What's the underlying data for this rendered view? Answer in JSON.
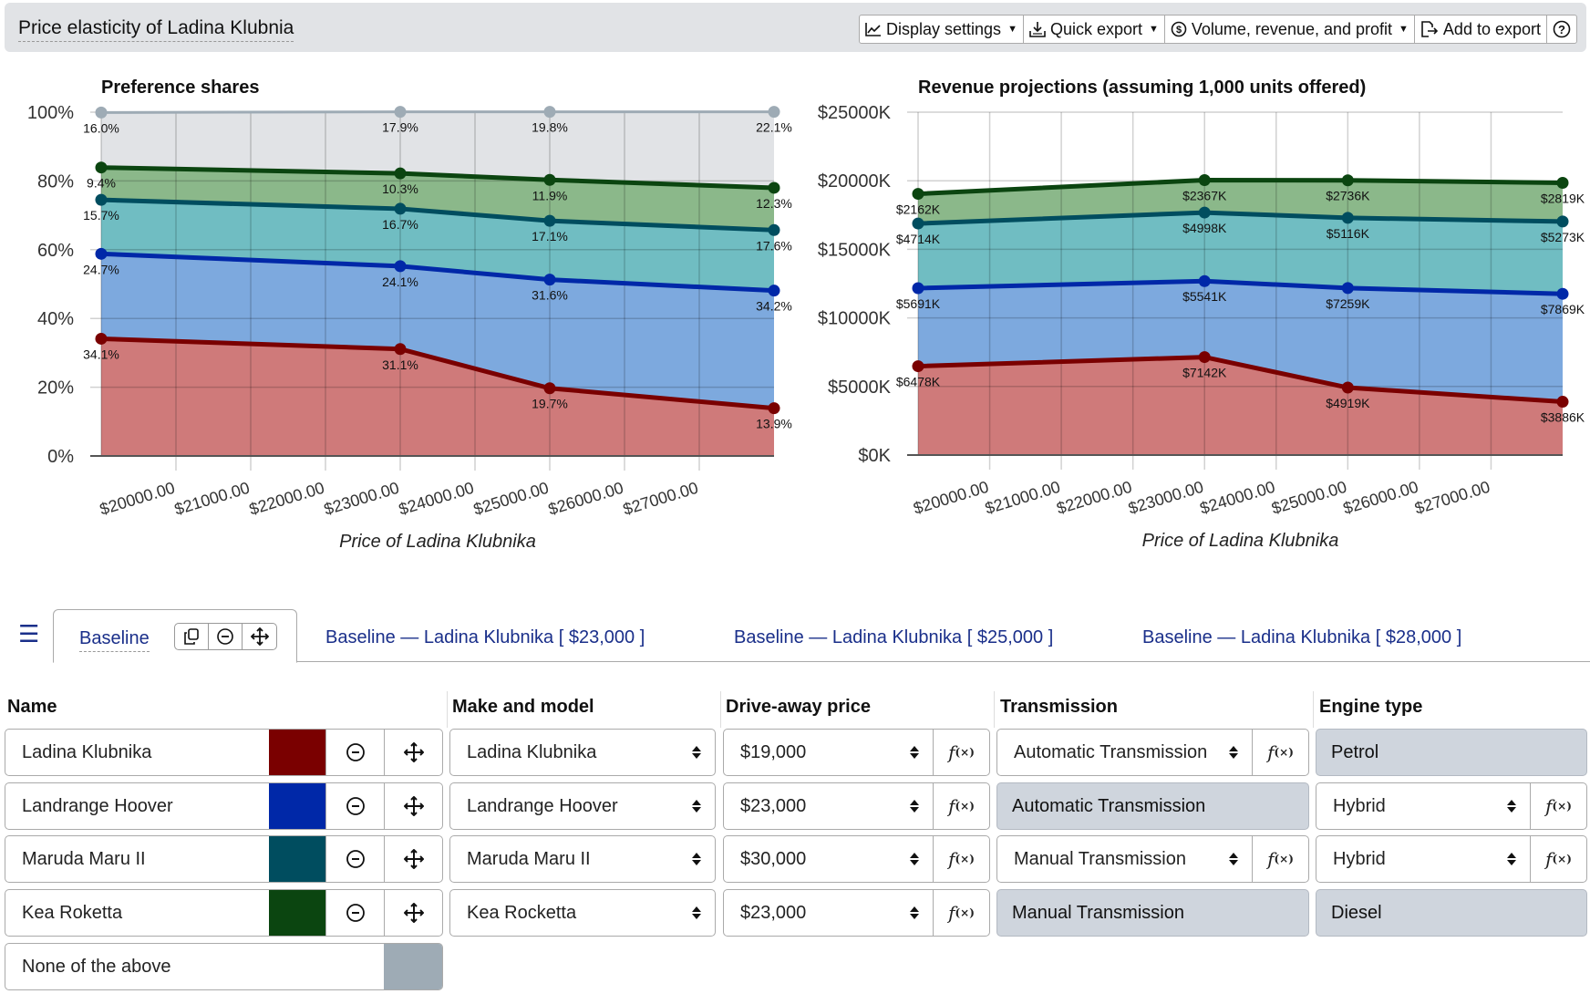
{
  "header": {
    "title": "Price elasticity of Ladina Klubnia",
    "toolbar": {
      "display_settings": "Display settings",
      "quick_export": "Quick export",
      "volume_menu": "Volume, revenue, and profit",
      "add_to_export": "Add to export"
    }
  },
  "colors": {
    "ladina": "#7a0000",
    "landrange": "#0028a8",
    "maruda": "#004d5f",
    "kea": "#0b4510",
    "none": "#9eabb5"
  },
  "chart_data": [
    {
      "type": "area",
      "stacked": true,
      "title": "Preference shares",
      "xlabel": "Price of Ladina Klubnika",
      "ylabel": "",
      "x": [
        19000,
        23000,
        25000,
        28000
      ],
      "xlim": [
        19000,
        28000
      ],
      "xticks": [
        "$20000.00",
        "$21000.00",
        "$22000.00",
        "$23000.00",
        "$24000.00",
        "$25000.00",
        "$26000.00",
        "$27000.00"
      ],
      "ylim": [
        0,
        100
      ],
      "yticks": [
        "0%",
        "20%",
        "40%",
        "60%",
        "80%",
        "100%"
      ],
      "grid": true,
      "series": [
        {
          "name": "Ladina Klubnika",
          "values": [
            34.1,
            31.1,
            19.7,
            13.9
          ],
          "labels": [
            "34.1%",
            "31.1%",
            "19.7%",
            "13.9%"
          ]
        },
        {
          "name": "Landrange Hoover",
          "values": [
            24.7,
            24.1,
            31.6,
            34.2
          ],
          "labels": [
            "24.7%",
            "24.1%",
            "31.6%",
            "34.2%"
          ]
        },
        {
          "name": "Maruda Maru II",
          "values": [
            15.7,
            16.7,
            17.1,
            17.6
          ],
          "labels": [
            "15.7%",
            "16.7%",
            "17.1%",
            "17.6%"
          ]
        },
        {
          "name": "Kea Roketta",
          "values": [
            9.4,
            10.3,
            11.9,
            12.3
          ],
          "labels": [
            "9.4%",
            "10.3%",
            "11.9%",
            "12.3%"
          ]
        },
        {
          "name": "None of the above",
          "values": [
            16.0,
            17.9,
            19.8,
            22.1
          ],
          "labels": [
            "16.0%",
            "17.9%",
            "19.8%",
            "22.1%"
          ]
        }
      ]
    },
    {
      "type": "area",
      "stacked": true,
      "title": "Revenue projections (assuming 1,000 units offered)",
      "xlabel": "Price of Ladina Klubnika",
      "ylabel": "",
      "x": [
        19000,
        23000,
        25000,
        28000
      ],
      "xlim": [
        19000,
        28000
      ],
      "xticks": [
        "$20000.00",
        "$21000.00",
        "$22000.00",
        "$23000.00",
        "$24000.00",
        "$25000.00",
        "$26000.00",
        "$27000.00"
      ],
      "ylim": [
        0,
        25000
      ],
      "yticks": [
        "$0K",
        "$5000K",
        "$10000K",
        "$15000K",
        "$20000K",
        "$25000K"
      ],
      "grid": true,
      "series": [
        {
          "name": "Ladina Klubnika",
          "values": [
            6478,
            7142,
            4919,
            3886
          ],
          "labels": [
            "$6478K",
            "$7142K",
            "$4919K",
            "$3886K"
          ]
        },
        {
          "name": "Landrange Hoover",
          "values": [
            5691,
            5541,
            7259,
            7869
          ],
          "labels": [
            "$5691K",
            "$5541K",
            "$7259K",
            "$7869K"
          ]
        },
        {
          "name": "Maruda Maru II",
          "values": [
            4714,
            4998,
            5116,
            5273
          ],
          "labels": [
            "$4714K",
            "$4998K",
            "$5116K",
            "$5273K"
          ]
        },
        {
          "name": "Kea Roketta",
          "values": [
            2162,
            2367,
            2736,
            2819
          ],
          "labels": [
            "$2162K",
            "$2367K",
            "$2736K",
            "$2819K"
          ]
        }
      ]
    }
  ],
  "tabs": {
    "active": "Baseline",
    "others": [
      "Baseline — Ladina Klubnika [ $23,000 ]",
      "Baseline — Ladina Klubnika [ $25,000 ]",
      "Baseline — Ladina Klubnika [ $28,000 ]"
    ]
  },
  "table": {
    "headers": {
      "name": "Name",
      "make": "Make and model",
      "price": "Drive-away price",
      "transmission": "Transmission",
      "engine": "Engine type"
    },
    "fx_label": "f",
    "fx_sub": "(×)",
    "rows": [
      {
        "name": "Ladina Klubnika",
        "make": "Ladina Klubnika",
        "price": "$19,000",
        "transmission": "Automatic Transmission",
        "transmission_editable": true,
        "engine": "Petrol",
        "engine_editable": false
      },
      {
        "name": "Landrange Hoover",
        "make": "Landrange Hoover",
        "price": "$23,000",
        "transmission": "Automatic Transmission",
        "transmission_editable": false,
        "engine": "Hybrid",
        "engine_editable": true
      },
      {
        "name": "Maruda Maru II",
        "make": "Maruda Maru II",
        "price": "$30,000",
        "transmission": "Manual Transmission",
        "transmission_editable": true,
        "engine": "Hybrid",
        "engine_editable": true
      },
      {
        "name": "Kea Roketta",
        "make": "Kea Rocketta",
        "price": "$23,000",
        "transmission": "Manual Transmission",
        "transmission_editable": false,
        "engine": "Diesel",
        "engine_editable": false
      }
    ],
    "none_row": {
      "name": "None of the above"
    }
  }
}
